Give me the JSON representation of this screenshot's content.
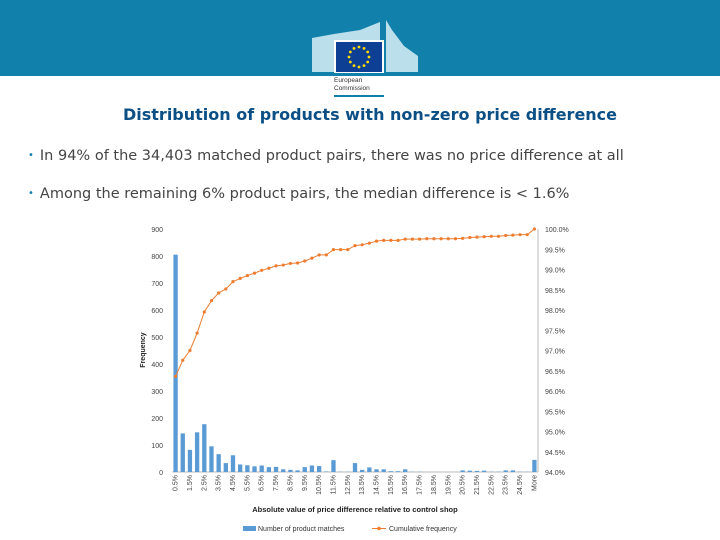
{
  "header": {
    "logo_text_line1": "European",
    "logo_text_line2": "Commission"
  },
  "title": "Distribution of products with non-zero price difference",
  "bullets": [
    "In 94% of the 34,403 matched product pairs, there was no price difference at all",
    "Among the remaining 6% product pairs, the median difference is < 1.6%"
  ],
  "chart_data": {
    "type": "bar+line",
    "xlabel": "Absolute value of price difference relative to control shop",
    "ylabel": "Frequency",
    "ylim": [
      0,
      900
    ],
    "y_ticks": [
      "0",
      "100",
      "200",
      "300",
      "400",
      "500",
      "600",
      "700",
      "800",
      "900"
    ],
    "y2lim": [
      94,
      100
    ],
    "y2_ticks": [
      "94.0%",
      "94.5%",
      "95.0%",
      "95.5%",
      "96.0%",
      "96.5%",
      "97.0%",
      "97.5%",
      "98.0%",
      "98.5%",
      "99.0%",
      "99.5%",
      "100.0%"
    ],
    "categories": [
      "0.5%",
      "1.0%",
      "1.5%",
      "2.0%",
      "2.5%",
      "3.0%",
      "3.5%",
      "4.0%",
      "4.5%",
      "5.0%",
      "5.5%",
      "6.0%",
      "6.5%",
      "7.0%",
      "7.5%",
      "8.0%",
      "8.5%",
      "9.0%",
      "9.5%",
      "10.0%",
      "10.5%",
      "11.0%",
      "11.5%",
      "12.0%",
      "12.5%",
      "13.0%",
      "13.5%",
      "14.0%",
      "14.5%",
      "15.0%",
      "15.5%",
      "16.0%",
      "16.5%",
      "17.0%",
      "17.5%",
      "18.0%",
      "18.5%",
      "19.0%",
      "19.5%",
      "20.0%",
      "20.5%",
      "21.0%",
      "21.5%",
      "22.0%",
      "22.5%",
      "23.0%",
      "23.5%",
      "24.0%",
      "24.5%",
      "25.0%",
      "More"
    ],
    "series": [
      {
        "name": "Number of product matches",
        "type": "bar",
        "color": "#5b9bd5",
        "values": [
          805,
          143,
          82,
          147,
          177,
          95,
          66,
          33,
          62,
          28,
          25,
          21,
          24,
          18,
          19,
          10,
          8,
          6,
          18,
          24,
          22,
          2,
          44,
          1,
          1,
          33,
          8,
          17,
          10,
          10,
          3,
          3,
          10,
          1,
          1,
          0,
          0,
          0,
          0,
          0,
          6,
          5,
          4,
          5,
          1,
          1,
          6,
          6,
          1,
          1,
          45
        ]
      },
      {
        "name": "Cumulative frequency",
        "type": "line",
        "axis": "right",
        "color": "#ed7d31",
        "values": [
          96.36,
          96.76,
          97.0,
          97.43,
          97.95,
          98.23,
          98.42,
          98.52,
          98.7,
          98.78,
          98.85,
          98.91,
          98.98,
          99.03,
          99.09,
          99.11,
          99.15,
          99.16,
          99.21,
          99.28,
          99.36,
          99.36,
          99.49,
          99.49,
          99.49,
          99.59,
          99.61,
          99.65,
          99.7,
          99.72,
          99.72,
          99.72,
          99.75,
          99.75,
          99.75,
          99.76,
          99.76,
          99.76,
          99.76,
          99.76,
          99.77,
          99.79,
          99.8,
          99.81,
          99.82,
          99.82,
          99.84,
          99.85,
          99.86,
          99.86,
          100.0
        ]
      }
    ],
    "legend": "bottom"
  }
}
